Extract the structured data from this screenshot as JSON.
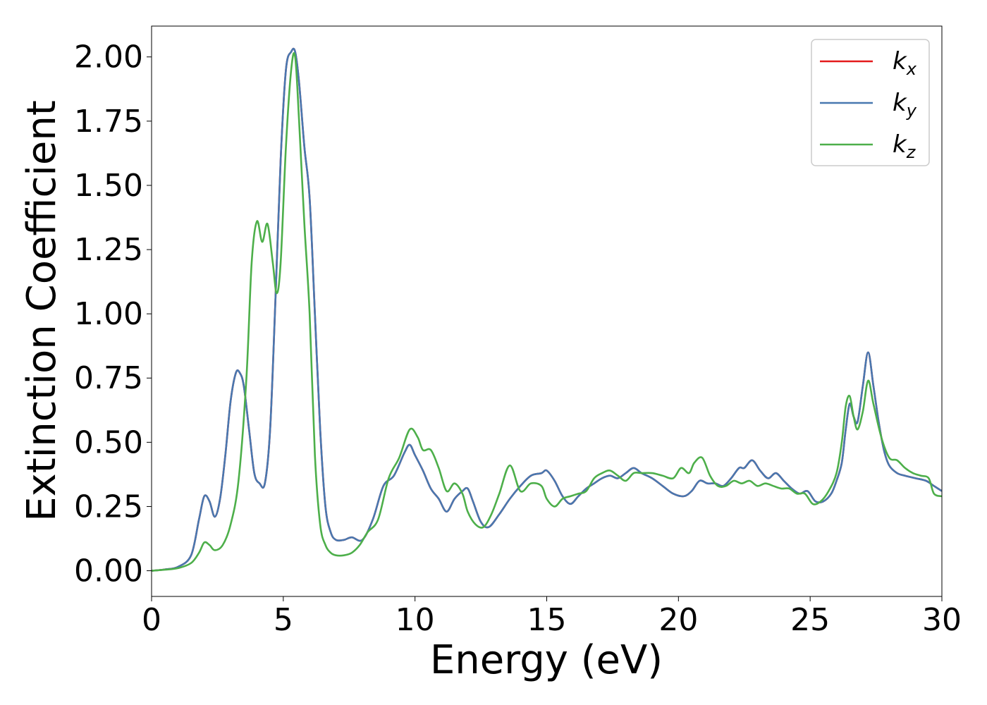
{
  "chart_data": {
    "type": "line",
    "xlabel": "Energy (eV)",
    "ylabel": "Extinction Coefficient",
    "xlim": [
      0,
      30
    ],
    "ylim": [
      -0.1,
      2.12
    ],
    "xticks": [
      0,
      5,
      10,
      15,
      20,
      25,
      30
    ],
    "xtick_labels": [
      "0",
      "5",
      "10",
      "15",
      "20",
      "25",
      "30"
    ],
    "yticks": [
      0.0,
      0.25,
      0.5,
      0.75,
      1.0,
      1.25,
      1.5,
      1.75,
      2.0
    ],
    "ytick_labels": [
      "0.00",
      "0.25",
      "0.50",
      "0.75",
      "1.00",
      "1.25",
      "1.50",
      "1.75",
      "2.00"
    ],
    "grid": false,
    "legend_position": "top-right",
    "series": [
      {
        "name": "k_x",
        "label_main": "k",
        "label_sub": "x",
        "color": "#e41a1c",
        "x": [
          0,
          0.5,
          1.0,
          1.5,
          1.8,
          2.0,
          2.2,
          2.4,
          2.6,
          2.8,
          3.0,
          3.2,
          3.35,
          3.5,
          3.7,
          3.9,
          4.1,
          4.3,
          4.5,
          4.7,
          4.9,
          5.1,
          5.3,
          5.45,
          5.6,
          5.8,
          6.0,
          6.2,
          6.4,
          6.6,
          6.8,
          7.0,
          7.3,
          7.6,
          8.0,
          8.4,
          8.8,
          9.2,
          9.6,
          9.8,
          10.0,
          10.3,
          10.6,
          10.9,
          11.2,
          11.5,
          11.8,
          12.0,
          12.2,
          12.5,
          12.8,
          13.2,
          13.6,
          14.0,
          14.4,
          14.8,
          15.0,
          15.3,
          15.6,
          15.9,
          16.2,
          16.5,
          16.8,
          17.1,
          17.4,
          17.7,
          18.0,
          18.3,
          18.6,
          19.0,
          19.4,
          19.8,
          20.2,
          20.5,
          20.8,
          21.1,
          21.4,
          21.7,
          22.0,
          22.3,
          22.5,
          22.8,
          23.1,
          23.4,
          23.7,
          24.0,
          24.3,
          24.6,
          24.9,
          25.2,
          25.5,
          25.8,
          26.0,
          26.2,
          26.35,
          26.5,
          26.65,
          26.8,
          27.0,
          27.2,
          27.4,
          27.6,
          27.8,
          28.0,
          28.3,
          28.6,
          29.0,
          29.4,
          29.7,
          30.0
        ],
        "values": [
          0.0,
          0.005,
          0.015,
          0.06,
          0.2,
          0.29,
          0.27,
          0.21,
          0.28,
          0.45,
          0.66,
          0.77,
          0.77,
          0.72,
          0.55,
          0.38,
          0.34,
          0.34,
          0.55,
          1.05,
          1.6,
          1.95,
          2.02,
          2.02,
          1.9,
          1.65,
          1.45,
          1.0,
          0.55,
          0.25,
          0.15,
          0.12,
          0.12,
          0.13,
          0.12,
          0.2,
          0.33,
          0.37,
          0.46,
          0.49,
          0.45,
          0.39,
          0.32,
          0.28,
          0.23,
          0.28,
          0.31,
          0.32,
          0.27,
          0.19,
          0.17,
          0.22,
          0.28,
          0.33,
          0.37,
          0.38,
          0.39,
          0.35,
          0.29,
          0.26,
          0.29,
          0.32,
          0.34,
          0.36,
          0.37,
          0.36,
          0.38,
          0.4,
          0.38,
          0.36,
          0.33,
          0.3,
          0.29,
          0.31,
          0.35,
          0.34,
          0.34,
          0.33,
          0.36,
          0.4,
          0.4,
          0.43,
          0.39,
          0.36,
          0.38,
          0.35,
          0.32,
          0.3,
          0.31,
          0.27,
          0.27,
          0.3,
          0.35,
          0.42,
          0.55,
          0.65,
          0.6,
          0.58,
          0.72,
          0.85,
          0.72,
          0.58,
          0.47,
          0.41,
          0.38,
          0.37,
          0.36,
          0.35,
          0.33,
          0.31
        ]
      },
      {
        "name": "k_y",
        "label_main": "k",
        "label_sub": "y",
        "color": "#4878b0",
        "x": [
          0,
          0.5,
          1.0,
          1.5,
          1.8,
          2.0,
          2.2,
          2.4,
          2.6,
          2.8,
          3.0,
          3.2,
          3.35,
          3.5,
          3.7,
          3.9,
          4.1,
          4.3,
          4.5,
          4.7,
          4.9,
          5.1,
          5.3,
          5.45,
          5.6,
          5.8,
          6.0,
          6.2,
          6.4,
          6.6,
          6.8,
          7.0,
          7.3,
          7.6,
          8.0,
          8.4,
          8.8,
          9.2,
          9.6,
          9.8,
          10.0,
          10.3,
          10.6,
          10.9,
          11.2,
          11.5,
          11.8,
          12.0,
          12.2,
          12.5,
          12.8,
          13.2,
          13.6,
          14.0,
          14.4,
          14.8,
          15.0,
          15.3,
          15.6,
          15.9,
          16.2,
          16.5,
          16.8,
          17.1,
          17.4,
          17.7,
          18.0,
          18.3,
          18.6,
          19.0,
          19.4,
          19.8,
          20.2,
          20.5,
          20.8,
          21.1,
          21.4,
          21.7,
          22.0,
          22.3,
          22.5,
          22.8,
          23.1,
          23.4,
          23.7,
          24.0,
          24.3,
          24.6,
          24.9,
          25.2,
          25.5,
          25.8,
          26.0,
          26.2,
          26.35,
          26.5,
          26.65,
          26.8,
          27.0,
          27.2,
          27.4,
          27.6,
          27.8,
          28.0,
          28.3,
          28.6,
          29.0,
          29.4,
          29.7,
          30.0
        ],
        "values": [
          0.0,
          0.005,
          0.015,
          0.06,
          0.2,
          0.29,
          0.27,
          0.21,
          0.28,
          0.45,
          0.66,
          0.77,
          0.77,
          0.72,
          0.55,
          0.38,
          0.34,
          0.34,
          0.55,
          1.05,
          1.6,
          1.95,
          2.02,
          2.02,
          1.9,
          1.65,
          1.45,
          1.0,
          0.55,
          0.25,
          0.15,
          0.12,
          0.12,
          0.13,
          0.12,
          0.2,
          0.33,
          0.37,
          0.46,
          0.49,
          0.45,
          0.39,
          0.32,
          0.28,
          0.23,
          0.28,
          0.31,
          0.32,
          0.27,
          0.19,
          0.17,
          0.22,
          0.28,
          0.33,
          0.37,
          0.38,
          0.39,
          0.35,
          0.29,
          0.26,
          0.29,
          0.32,
          0.34,
          0.36,
          0.37,
          0.36,
          0.38,
          0.4,
          0.38,
          0.36,
          0.33,
          0.3,
          0.29,
          0.31,
          0.35,
          0.34,
          0.34,
          0.33,
          0.36,
          0.4,
          0.4,
          0.43,
          0.39,
          0.36,
          0.38,
          0.35,
          0.32,
          0.3,
          0.31,
          0.27,
          0.27,
          0.3,
          0.35,
          0.42,
          0.55,
          0.65,
          0.6,
          0.58,
          0.72,
          0.85,
          0.72,
          0.58,
          0.47,
          0.41,
          0.38,
          0.37,
          0.36,
          0.35,
          0.33,
          0.31
        ]
      },
      {
        "name": "k_z",
        "label_main": "k",
        "label_sub": "z",
        "color": "#4daf4a",
        "x": [
          0,
          0.5,
          1.0,
          1.5,
          1.8,
          2.0,
          2.2,
          2.4,
          2.7,
          3.0,
          3.3,
          3.6,
          3.8,
          4.0,
          4.2,
          4.4,
          4.6,
          4.75,
          4.9,
          5.1,
          5.3,
          5.45,
          5.6,
          5.8,
          6.0,
          6.2,
          6.4,
          6.6,
          6.8,
          7.0,
          7.3,
          7.6,
          7.9,
          8.2,
          8.6,
          9.0,
          9.4,
          9.8,
          10.1,
          10.3,
          10.6,
          10.9,
          11.2,
          11.5,
          11.8,
          12.0,
          12.3,
          12.6,
          12.9,
          13.2,
          13.6,
          14.0,
          14.4,
          14.8,
          15.0,
          15.3,
          15.6,
          15.9,
          16.2,
          16.5,
          16.8,
          17.1,
          17.4,
          17.7,
          18.0,
          18.3,
          18.6,
          19.0,
          19.4,
          19.8,
          20.1,
          20.4,
          20.6,
          20.9,
          21.2,
          21.5,
          21.8,
          22.1,
          22.4,
          22.7,
          23.0,
          23.3,
          23.6,
          23.9,
          24.2,
          24.5,
          24.8,
          25.1,
          25.4,
          25.7,
          26.0,
          26.2,
          26.35,
          26.5,
          26.65,
          26.8,
          27.0,
          27.2,
          27.4,
          27.7,
          28.0,
          28.3,
          28.6,
          28.9,
          29.2,
          29.5,
          29.7,
          30.0
        ],
        "values": [
          0.0,
          0.004,
          0.01,
          0.03,
          0.07,
          0.11,
          0.1,
          0.08,
          0.1,
          0.18,
          0.35,
          0.75,
          1.2,
          1.36,
          1.28,
          1.35,
          1.2,
          1.08,
          1.2,
          1.65,
          1.95,
          2.0,
          1.75,
          1.35,
          1.0,
          0.45,
          0.18,
          0.1,
          0.07,
          0.06,
          0.06,
          0.07,
          0.1,
          0.15,
          0.2,
          0.36,
          0.44,
          0.55,
          0.52,
          0.47,
          0.47,
          0.4,
          0.31,
          0.34,
          0.3,
          0.23,
          0.18,
          0.17,
          0.22,
          0.3,
          0.41,
          0.31,
          0.34,
          0.33,
          0.28,
          0.25,
          0.28,
          0.29,
          0.3,
          0.31,
          0.36,
          0.38,
          0.39,
          0.37,
          0.35,
          0.38,
          0.38,
          0.38,
          0.37,
          0.36,
          0.4,
          0.38,
          0.42,
          0.44,
          0.37,
          0.33,
          0.33,
          0.35,
          0.34,
          0.35,
          0.33,
          0.34,
          0.33,
          0.32,
          0.32,
          0.3,
          0.3,
          0.26,
          0.27,
          0.31,
          0.38,
          0.5,
          0.64,
          0.68,
          0.6,
          0.55,
          0.62,
          0.74,
          0.65,
          0.52,
          0.44,
          0.43,
          0.4,
          0.38,
          0.37,
          0.36,
          0.3,
          0.29
        ]
      }
    ]
  }
}
